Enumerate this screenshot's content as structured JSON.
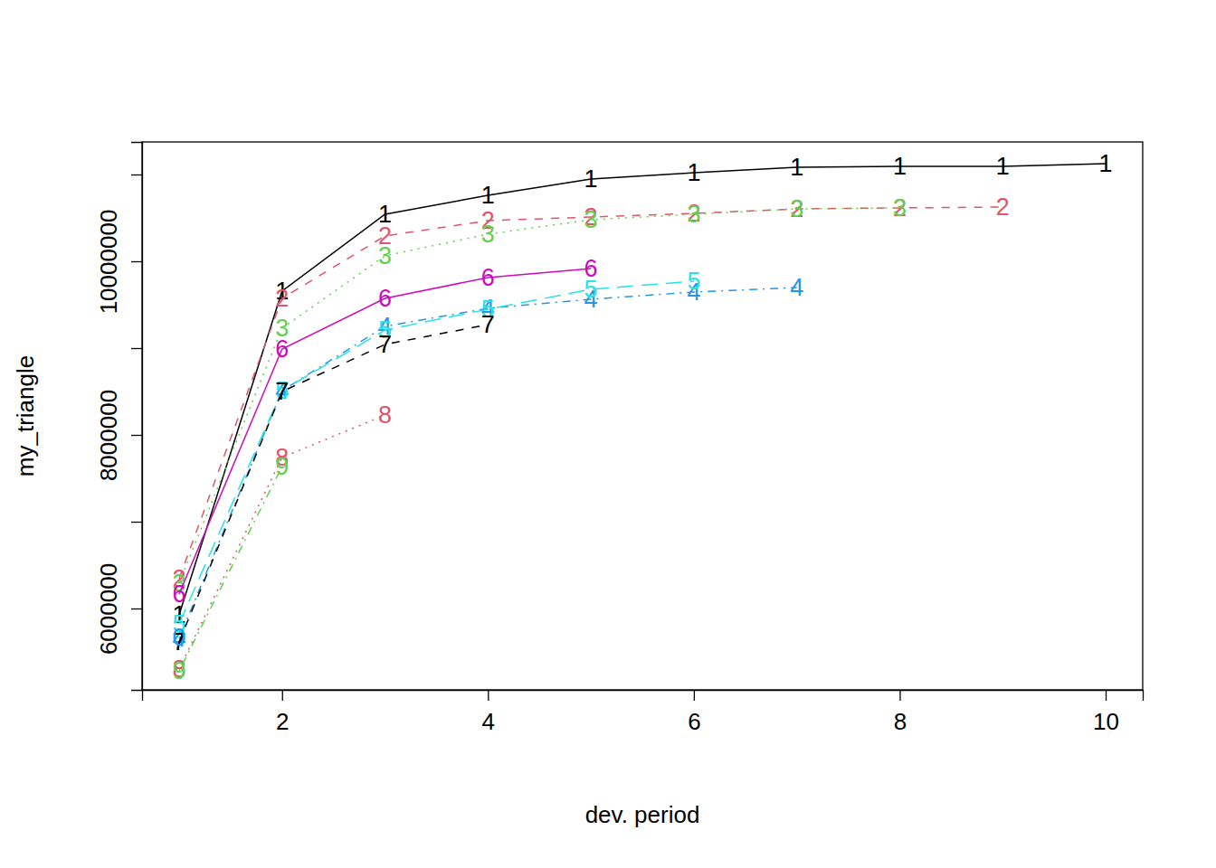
{
  "chart_data": {
    "type": "line",
    "x_label": "dev. period",
    "y_label": "my_triangle",
    "x": [
      1,
      2,
      3,
      4,
      5,
      6,
      7,
      8,
      9,
      10
    ],
    "xlim": [
      0.64,
      10.36
    ],
    "xticks": [
      2,
      4,
      6,
      8,
      10
    ],
    "ylim": [
      5062500,
      11375000
    ],
    "yticks": [
      6000000,
      {
        "value": 7000000,
        "label": null
      },
      8000000,
      {
        "value": 9000000,
        "label": null
      },
      10000000,
      {
        "value": 11000000,
        "label": null
      }
    ],
    "marker": "text",
    "series": [
      {
        "name": "1",
        "color": "#000000",
        "line_style": "solid",
        "values": [
          5927000,
          9656000,
          10542000,
          10760000,
          10948000,
          11021000,
          11083000,
          11094000,
          11094000,
          11125000
        ]
      },
      {
        "name": "2",
        "color": "#DF536B",
        "line_style": "dashed",
        "values": [
          6344000,
          9573000,
          10292000,
          10469000,
          10510000,
          10552000,
          10604000,
          10615000,
          10625000,
          null
        ]
      },
      {
        "name": "3",
        "color": "#61D04F",
        "line_style": "dotted",
        "values": [
          6292000,
          9229000,
          10063000,
          10313000,
          10479000,
          10542000,
          10604000,
          10615000,
          null,
          null
        ]
      },
      {
        "name": "4",
        "color": "#2297E6",
        "line_style": "dotdash",
        "values": [
          5656000,
          8510000,
          9250000,
          9458000,
          9563000,
          9646000,
          9698000,
          null,
          null,
          null
        ]
      },
      {
        "name": "5",
        "color": "#28E2E5",
        "line_style": "longdash",
        "values": [
          5823000,
          8510000,
          9208000,
          9448000,
          9677000,
          9771000,
          null,
          null,
          null,
          null
        ]
      },
      {
        "name": "6",
        "color": "#CD0BBC",
        "line_style": "solid",
        "values": [
          6167000,
          8990000,
          9573000,
          9813000,
          9917000,
          null,
          null,
          null,
          null,
          null
        ]
      },
      {
        "name": "7",
        "color": "#000000",
        "line_style": "dashed",
        "values": [
          5615000,
          8500000,
          9042000,
          9271000,
          null,
          null,
          null,
          null,
          null,
          null
        ]
      },
      {
        "name": "8",
        "color": "#DF536B",
        "line_style": "dotted",
        "values": [
          5302000,
          7740000,
          8229000,
          null,
          null,
          null,
          null,
          null,
          null,
          null
        ]
      },
      {
        "name": "9",
        "color": "#61D04F",
        "line_style": "dotdash",
        "values": [
          5281000,
          7635000,
          null,
          null,
          null,
          null,
          null,
          null,
          null,
          null
        ]
      },
      {
        "name": "0",
        "color": "#2297E6",
        "line_style": "longdash",
        "values": [
          5667000,
          null,
          null,
          null,
          null,
          null,
          null,
          null,
          null,
          null
        ]
      }
    ]
  }
}
